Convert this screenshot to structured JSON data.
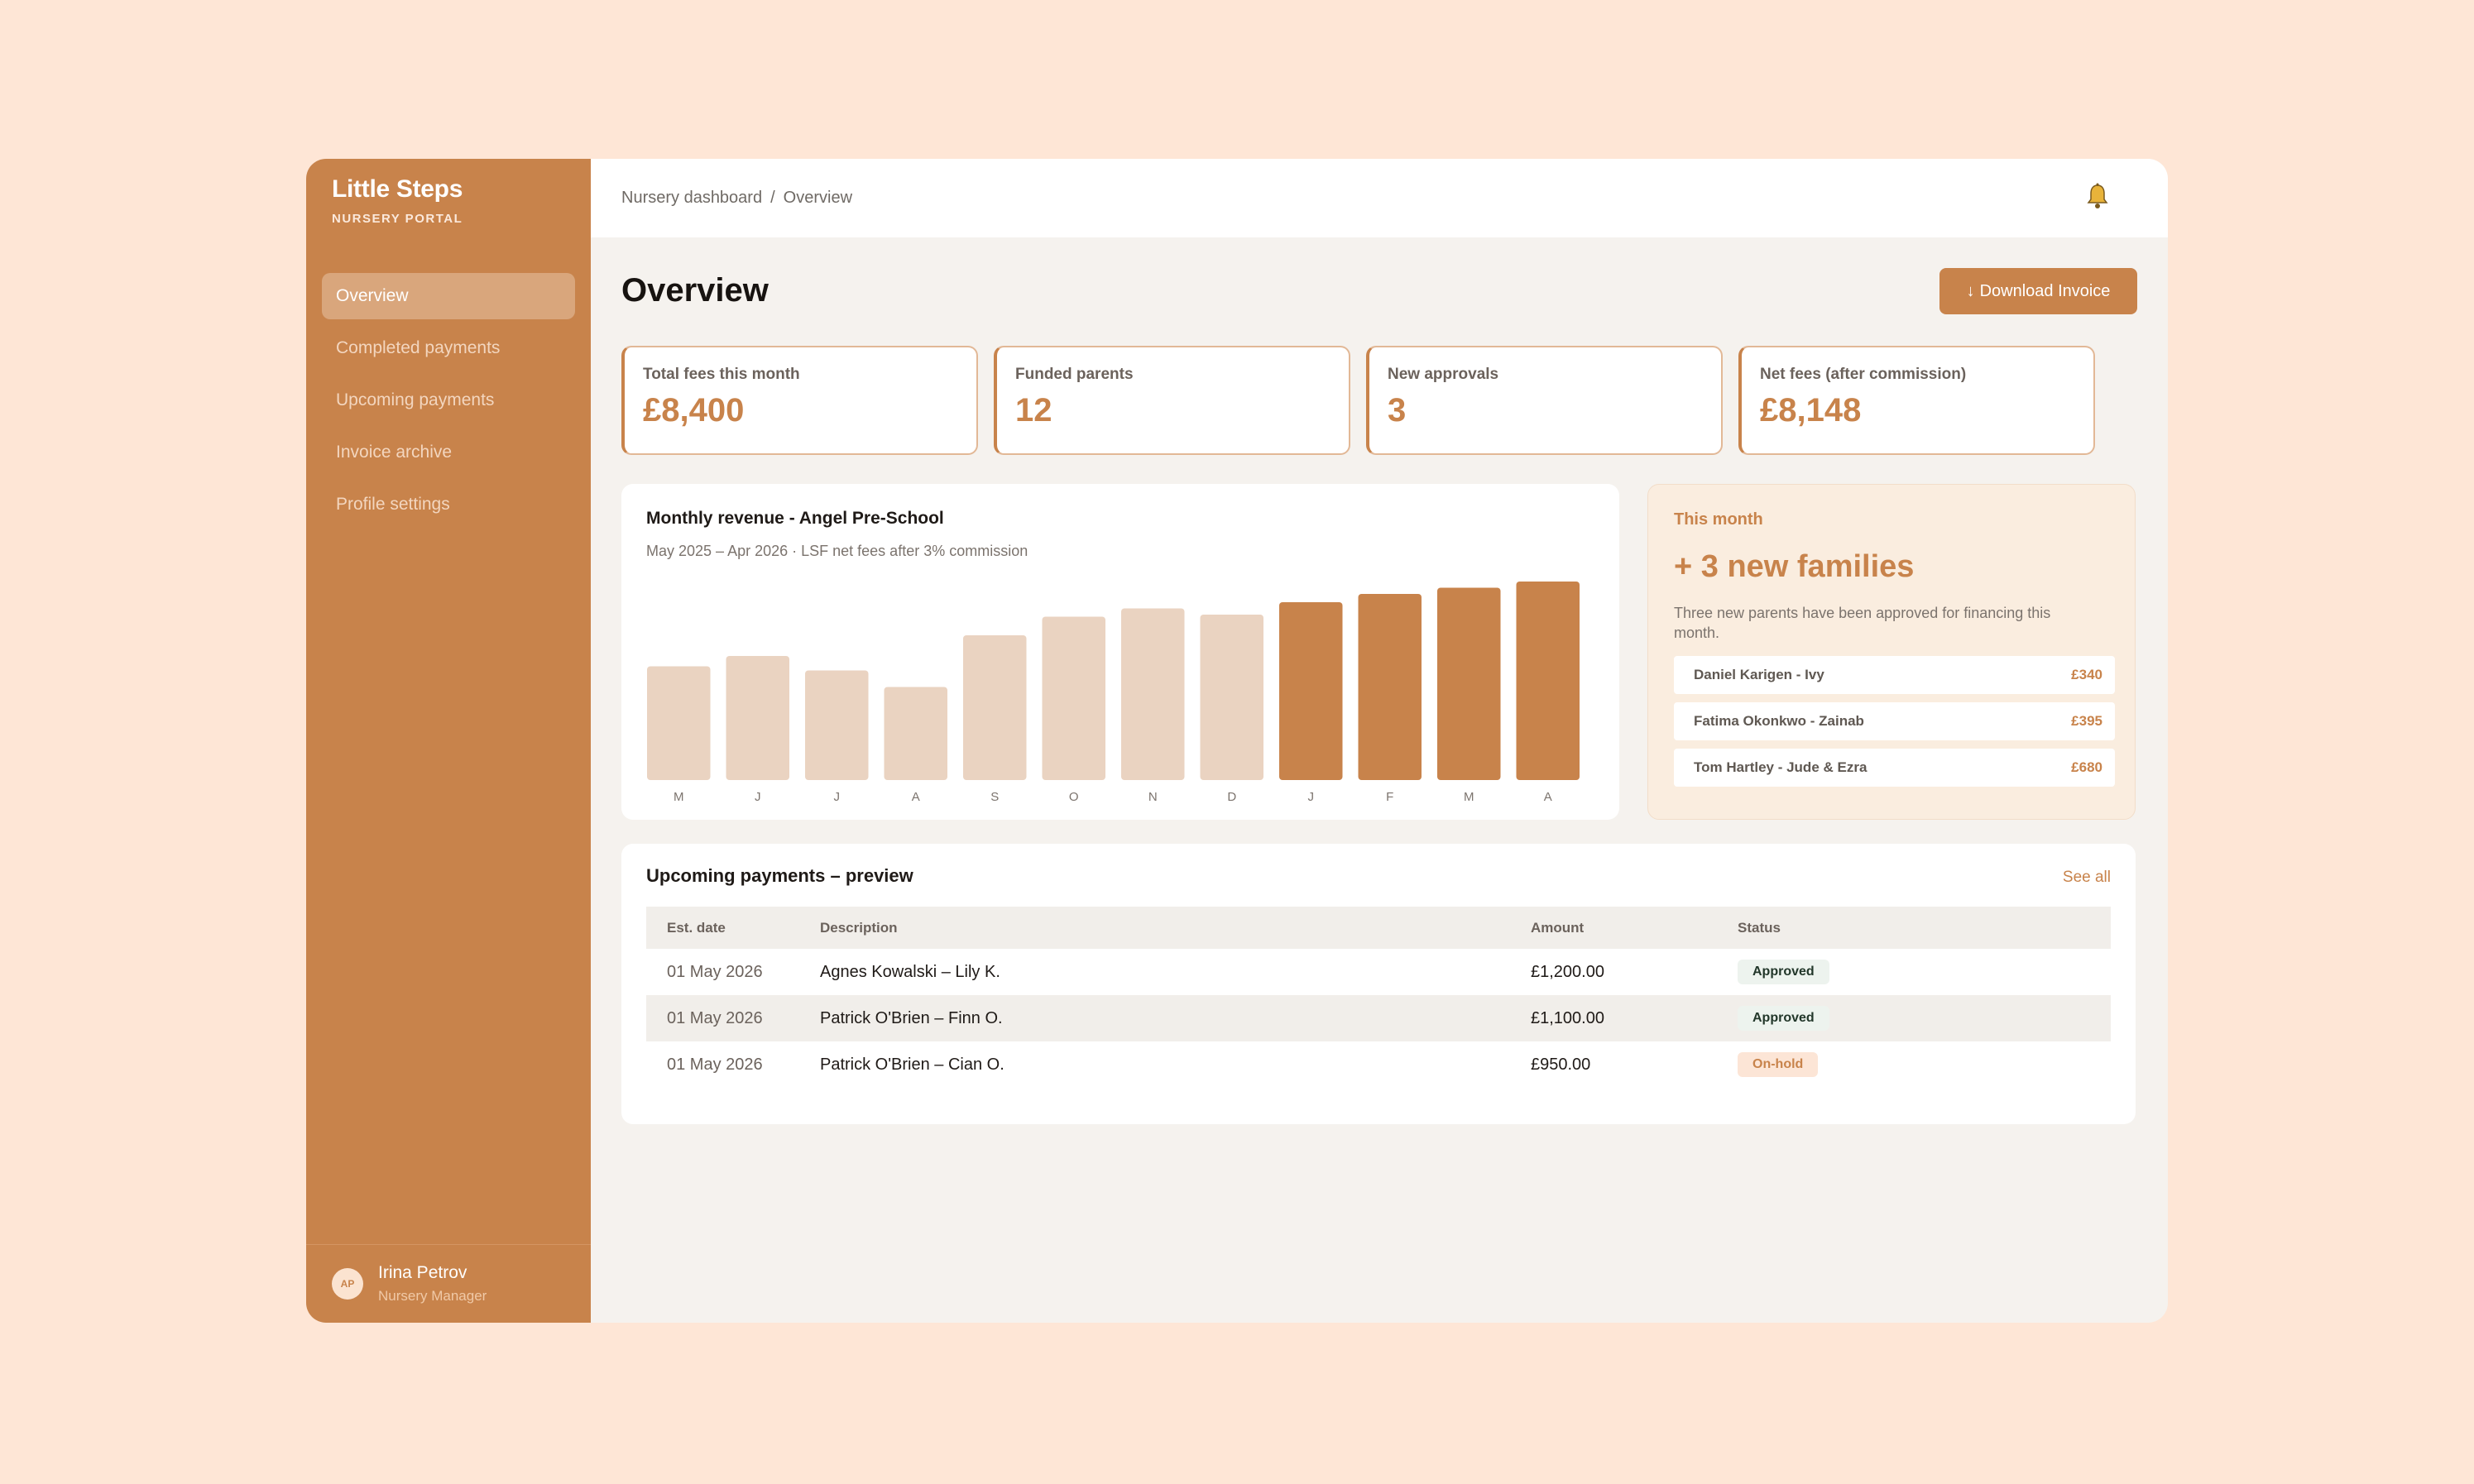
{
  "brand": {
    "name": "Little Steps",
    "subtitle": "NURSERY PORTAL"
  },
  "nav": [
    {
      "label": "Overview",
      "active": true
    },
    {
      "label": "Completed payments"
    },
    {
      "label": "Upcoming payments"
    },
    {
      "label": "Invoice archive"
    },
    {
      "label": "Profile settings"
    }
  ],
  "user": {
    "initials": "AP",
    "name": "Irina Petrov",
    "role": "Nursery Manager"
  },
  "breadcrumb": {
    "root": "Nursery dashboard",
    "separator": "/",
    "current": "Overview"
  },
  "header": {
    "title": "Overview",
    "download_label": "Download Invoice",
    "download_icon": "↓"
  },
  "stats": [
    {
      "label": "Total fees this month",
      "value": "£8,400"
    },
    {
      "label": "Funded parents",
      "value": "12"
    },
    {
      "label": "New approvals",
      "value": "3"
    },
    {
      "label": "Net fees (after commission)",
      "value": "£8,148"
    }
  ],
  "chart": {
    "title": "Monthly revenue - Angel Pre-School",
    "subtitle": "May 2025 – Apr 2026  ·  LSF net fees after 3% commission"
  },
  "chart_data": {
    "type": "bar",
    "categories": [
      "M",
      "J",
      "J",
      "A",
      "S",
      "O",
      "N",
      "D",
      "J",
      "F",
      "M",
      "A"
    ],
    "values": [
      55,
      60,
      53,
      45,
      70,
      79,
      83,
      80,
      86,
      90,
      93,
      96
    ],
    "highlighted": [
      false,
      false,
      false,
      false,
      false,
      false,
      false,
      false,
      true,
      true,
      true,
      true
    ],
    "ylim": [
      0,
      100
    ],
    "colors": {
      "base": "#EAD3C1",
      "highlight": "#C8834B"
    }
  },
  "this_month": {
    "label": "This month",
    "headline": "+ 3 new families",
    "description": "Three new parents have been approved for financing this month.",
    "families": [
      {
        "name": "Daniel Karigen - Ivy",
        "amount": "£340"
      },
      {
        "name": "Fatima Okonkwo -  Zainab",
        "amount": "£395"
      },
      {
        "name": "Tom Hartley -  Jude & Ezra",
        "amount": "£680"
      }
    ]
  },
  "payments": {
    "title": "Upcoming payments – preview",
    "see_all": "See all",
    "columns": [
      "Est. date",
      "Description",
      "Amount",
      "Status"
    ],
    "rows": [
      {
        "date": "01 May 2026",
        "description": "Agnes Kowalski – Lily K.",
        "amount": "£1,200.00",
        "status": "Approved"
      },
      {
        "date": "01 May 2026",
        "description": "Patrick O'Brien – Finn O.",
        "amount": "£1,100.00",
        "status": "Approved"
      },
      {
        "date": "01 May 2026",
        "description": "Patrick O'Brien – Cian O.",
        "amount": "£950.00",
        "status": "On-hold"
      }
    ]
  },
  "colors": {
    "accent": "#C8834B",
    "page_bg": "#FEE6D6",
    "approved_bg": "#EDF3EE",
    "onhold_bg": "#FCE5D6"
  }
}
